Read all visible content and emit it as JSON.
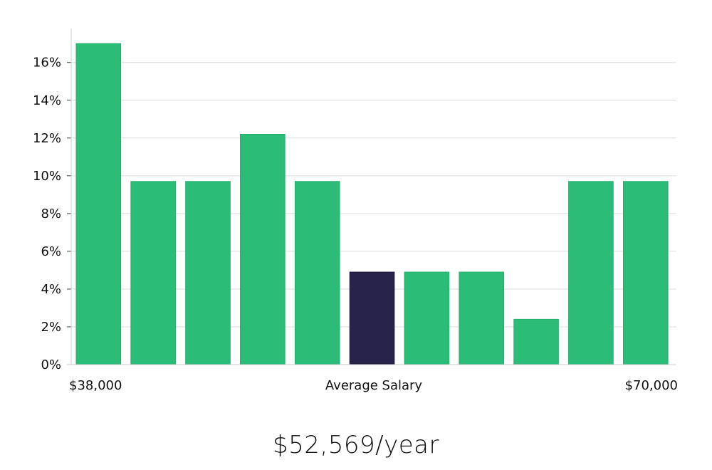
{
  "chart_data": {
    "type": "bar",
    "values": [
      17.0,
      9.7,
      9.7,
      12.2,
      9.7,
      4.9,
      4.9,
      4.9,
      2.4,
      9.7,
      9.7
    ],
    "highlight_index": 5,
    "ylim": [
      0,
      17.8
    ],
    "y_ticks": [
      0,
      2,
      4,
      6,
      8,
      10,
      12,
      14,
      16
    ],
    "y_tick_format": "percent",
    "x_labels": {
      "left": "$38,000",
      "center": "Average Salary",
      "right": "$70,000"
    },
    "grid": true,
    "colors": {
      "bar": "#2bbd77",
      "highlight": "#28234a",
      "grid": "#dddddd",
      "axis": "#cccccc"
    }
  },
  "summary": {
    "salary_text": "$52,569/year"
  }
}
